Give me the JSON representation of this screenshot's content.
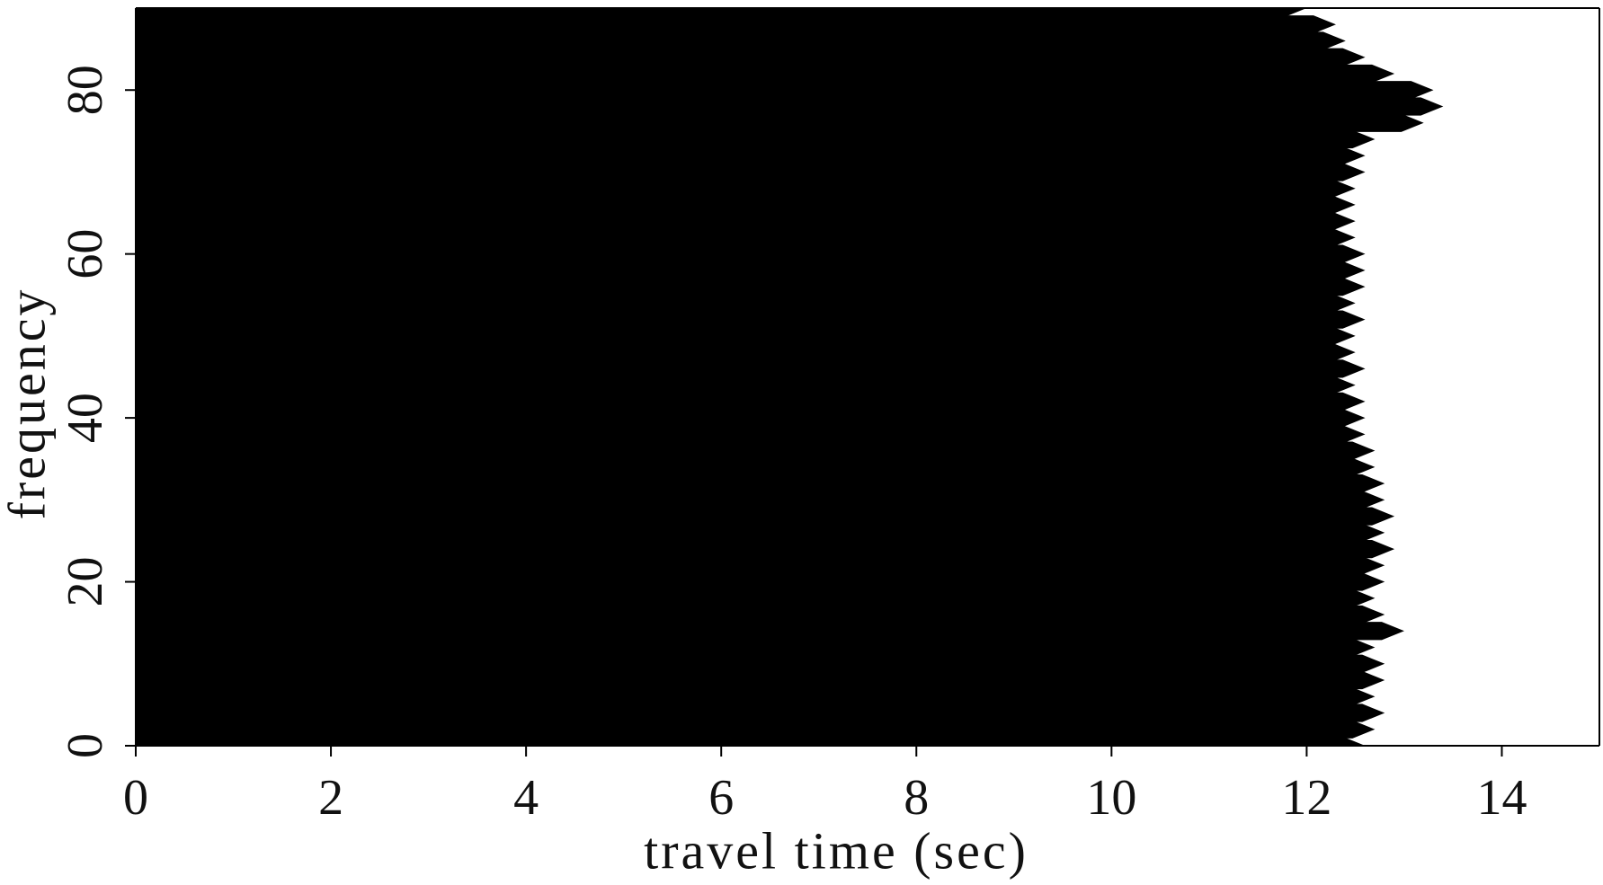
{
  "chart_data": {
    "type": "wiggle",
    "x_label": "travel time (sec)",
    "y_label": "frequency",
    "frequencies": [
      0,
      2,
      4,
      6,
      8,
      10,
      12,
      14,
      16,
      18,
      20,
      22,
      24,
      26,
      28,
      30,
      32,
      34,
      36,
      38,
      40,
      42,
      44,
      46,
      48,
      50,
      52,
      54,
      56,
      58,
      60,
      62,
      64,
      66,
      68,
      70,
      72,
      74,
      76,
      78,
      80,
      82,
      84,
      86,
      88,
      90
    ],
    "values": [
      12.6,
      12.7,
      12.8,
      12.7,
      12.8,
      12.8,
      12.7,
      13.0,
      12.8,
      12.7,
      12.8,
      12.8,
      12.9,
      12.8,
      12.9,
      12.8,
      12.8,
      12.7,
      12.7,
      12.6,
      12.6,
      12.6,
      12.5,
      12.6,
      12.5,
      12.5,
      12.6,
      12.5,
      12.6,
      12.6,
      12.6,
      12.5,
      12.5,
      12.5,
      12.5,
      12.6,
      12.6,
      12.7,
      13.2,
      13.4,
      13.3,
      12.9,
      12.6,
      12.4,
      12.3,
      12.0
    ],
    "color": "#000000",
    "xlim": [
      0,
      15
    ],
    "xticks": [
      0,
      2,
      4,
      6,
      8,
      10,
      12,
      14
    ],
    "ylim": [
      0,
      90
    ],
    "yticks": [
      0,
      20,
      40,
      60,
      80
    ]
  }
}
